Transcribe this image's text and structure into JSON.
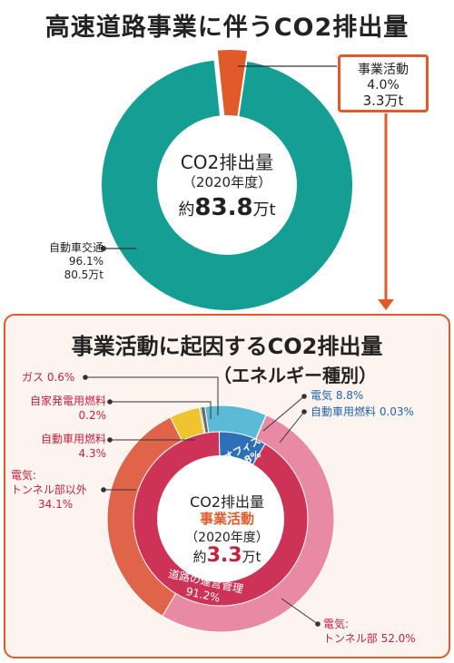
{
  "title1": "高速道路事業に伴うCO2排出量",
  "chart1_center": {
    "line1": "CO2排出量",
    "line2": "（2020年度）",
    "prefix": "約",
    "value": "83.8",
    "unit": "万t"
  },
  "callout_jigyo": {
    "label": "事業活動",
    "pct": "4.0%",
    "amount": "3.3万t"
  },
  "label_jidousha": {
    "label": "自動車交通",
    "pct": "96.1%",
    "amount": "80.5万t"
  },
  "title2": "事業活動に起因するCO2排出量",
  "subtitle2": "（エネルギー種別）",
  "chart2_center": {
    "line1": "CO2排出量",
    "line2": "事業活動",
    "line3": "（2020年度）",
    "prefix": "約",
    "value": "3.3",
    "unit": "万t"
  },
  "labels2": {
    "gas": "ガス 0.6%",
    "jikahatsu_name": "自家発電用燃料",
    "jikahatsu_pct": "0.2%",
    "jidoushayou_name": "自動車用燃料",
    "jidoushayou_pct": "4.3%",
    "denki_igai_name": "電気:",
    "denki_igai_name2": "トンネル部以外",
    "denki_igai_pct": "34.1%",
    "denki": "電気 8.8%",
    "jidoushayou_fuel": "自動車用燃料 0.03%",
    "office_name": "オフィス",
    "office_pct": "8.8%",
    "douro_name": "道路の運営管理",
    "douro_pct": "91.2%",
    "tunnel_name": "電気:",
    "tunnel_name2": "トンネル部 52.0%"
  },
  "chart_data": [
    {
      "type": "pie",
      "title": "高速道路事業に伴うCO2排出量",
      "categories": [
        "事業活動",
        "自動車交通"
      ],
      "values": [
        4.0,
        96.1
      ],
      "amounts": [
        "3.3万t",
        "80.5万t"
      ],
      "colors": [
        "#e05a2a",
        "#159e94"
      ],
      "total": "約83.8万t"
    },
    {
      "type": "pie",
      "title": "事業活動に起因するCO2排出量（エネルギー種別）",
      "outer_ring": {
        "categories": [
          "電気",
          "自動車用燃料",
          "電気:トンネル部",
          "電気:トンネル部以外",
          "自動車用燃料",
          "自家発電用燃料",
          "ガス"
        ],
        "values": [
          8.8,
          0.03,
          52.0,
          34.1,
          4.3,
          0.2,
          0.6
        ],
        "colors": [
          "#5bbbd6",
          "#2a5caa",
          "#e88aa3",
          "#e0644a",
          "#f0c330",
          "#2a8a3a",
          "#6a6a6a"
        ]
      },
      "inner_ring": {
        "categories": [
          "オフィス",
          "道路の運営管理"
        ],
        "values": [
          8.8,
          91.2
        ],
        "colors": [
          "#2f6fb8",
          "#cd3356"
        ]
      },
      "total": "約3.3万t"
    }
  ]
}
